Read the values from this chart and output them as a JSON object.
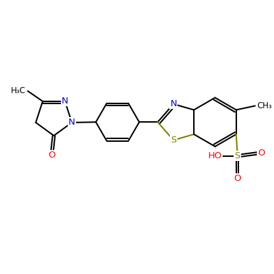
{
  "background_color": "#ffffff",
  "bond_lw": 1.5,
  "dbo": 0.08,
  "figsize": [
    4.0,
    4.0
  ],
  "dpi": 100,
  "xlim": [
    0,
    10
  ],
  "ylim": [
    0,
    10
  ],
  "colors": {
    "bond": "#000000",
    "N": "#0000cc",
    "O": "#ff0000",
    "S": "#808000",
    "C": "#000000"
  }
}
